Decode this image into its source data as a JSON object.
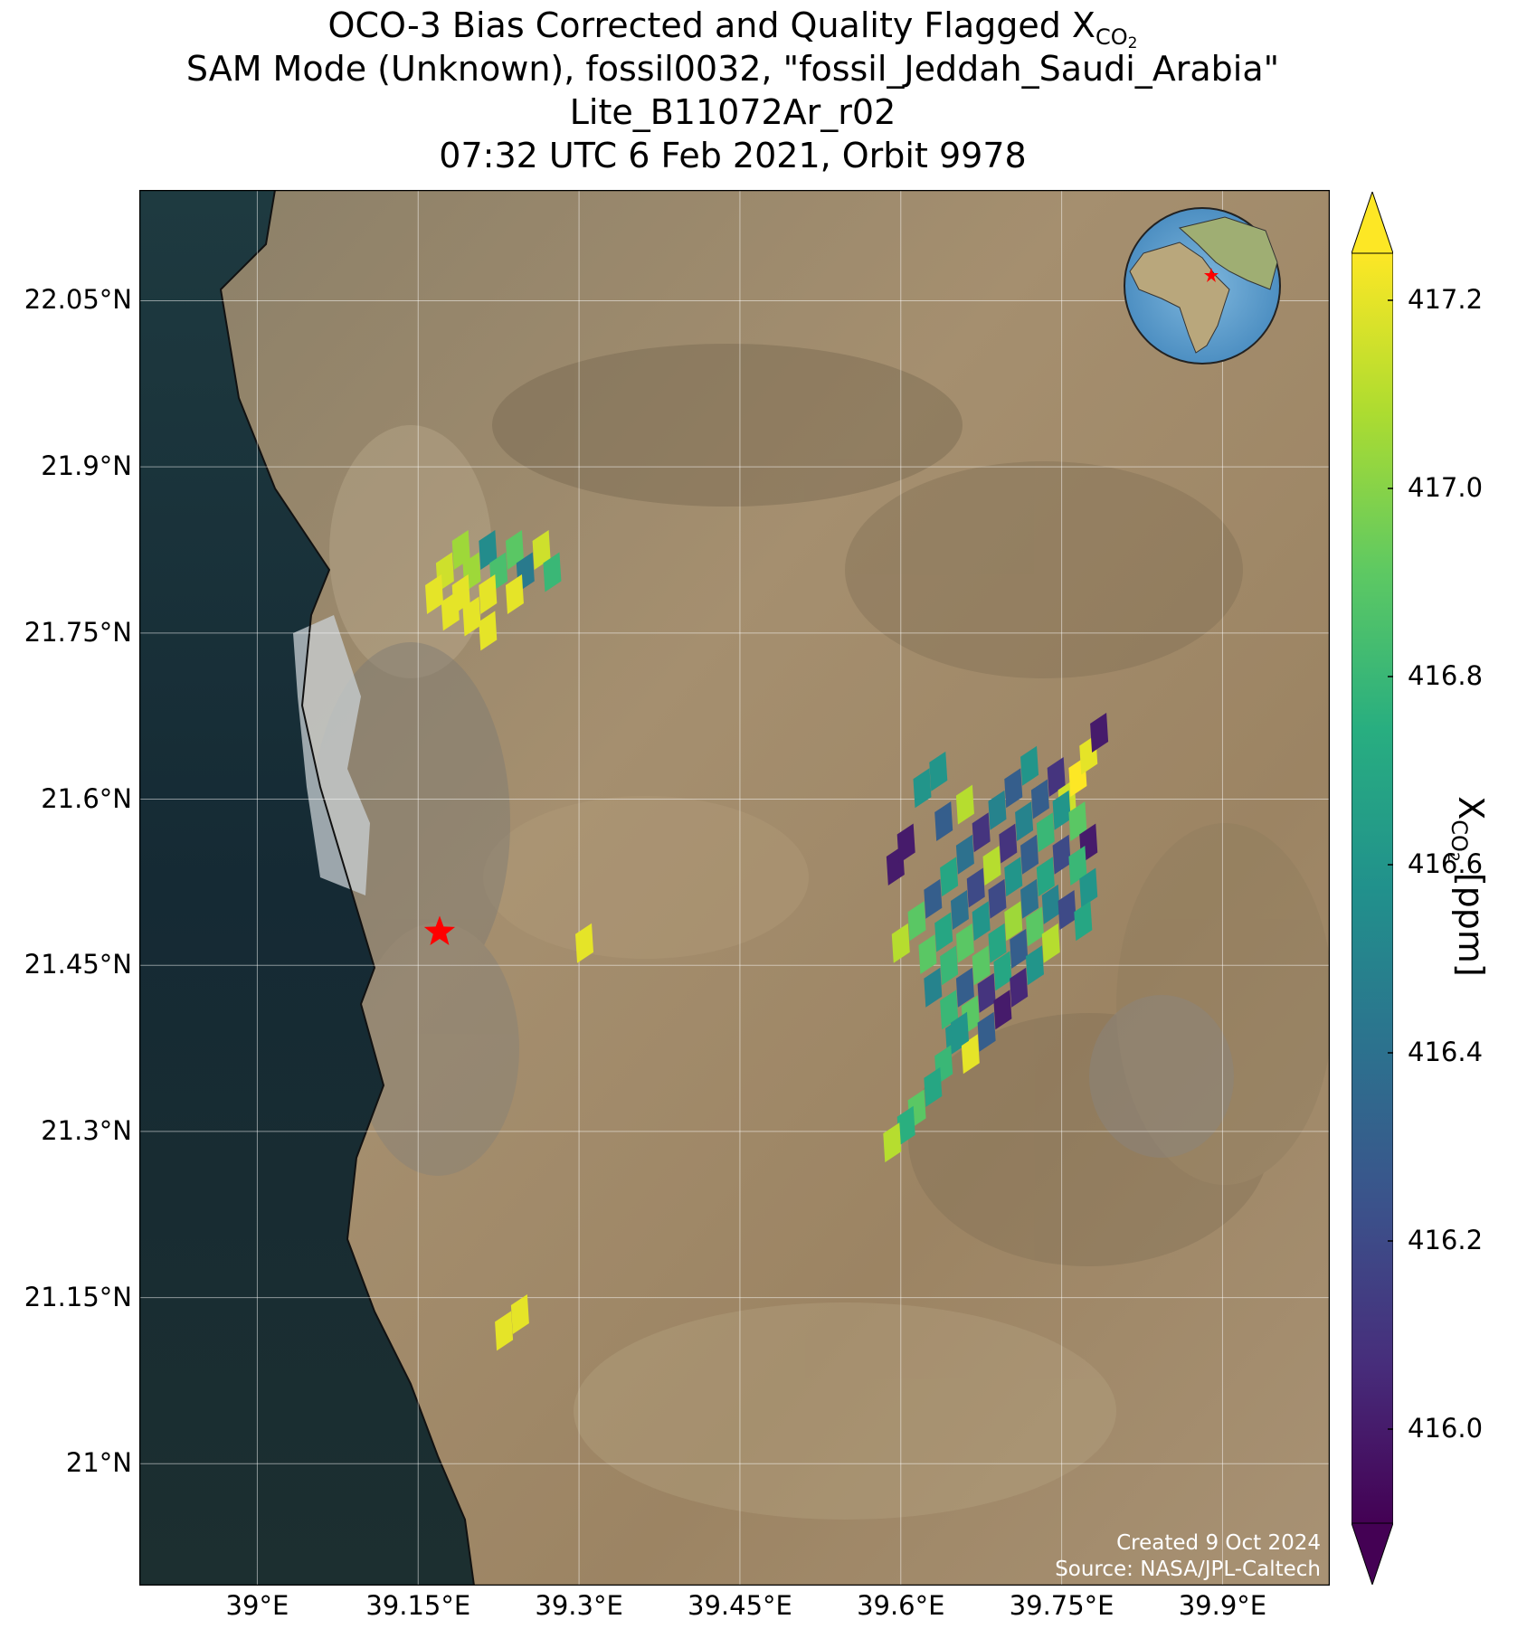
{
  "title": {
    "line1_prefix": "OCO-3 Bias Corrected and Quality Flagged X",
    "line1_sub": "CO",
    "line1_sub2": "2",
    "line2": "SAM Mode (Unknown), fossil0032, \"fossil_Jeddah_Saudi_Arabia\"",
    "line3": "Lite_B11072Ar_r02",
    "line4": "07:32 UTC 6 Feb 2021, Orbit 9978"
  },
  "map": {
    "lon_range": [
      38.89,
      40.0
    ],
    "lat_range": [
      20.89,
      22.15
    ],
    "lat_ticks": [
      {
        "value": 22.05,
        "label": "22.05°N"
      },
      {
        "value": 21.9,
        "label": "21.9°N"
      },
      {
        "value": 21.75,
        "label": "21.75°N"
      },
      {
        "value": 21.6,
        "label": "21.6°N"
      },
      {
        "value": 21.45,
        "label": "21.45°N"
      },
      {
        "value": 21.3,
        "label": "21.3°N"
      },
      {
        "value": 21.15,
        "label": "21.15°N"
      },
      {
        "value": 21.0,
        "label": "21°N"
      }
    ],
    "lon_ticks": [
      {
        "value": 39.0,
        "label": "39°E"
      },
      {
        "value": 39.15,
        "label": "39.15°E"
      },
      {
        "value": 39.3,
        "label": "39.3°E"
      },
      {
        "value": 39.45,
        "label": "39.45°E"
      },
      {
        "value": 39.6,
        "label": "39.6°E"
      },
      {
        "value": 39.75,
        "label": "39.75°E"
      },
      {
        "value": 39.9,
        "label": "39.9°E"
      }
    ],
    "grid": true,
    "basemap": "satellite imagery",
    "site_marker": {
      "name": "fossil_Jeddah_Saudi_Arabia",
      "lon": 39.17,
      "lat": 21.48,
      "color": "#ff0000",
      "shape": "star"
    },
    "inset": {
      "type": "globe",
      "marker_color": "#ff0000",
      "placement": "top-right"
    },
    "credit_line1": "Created 9 Oct 2024",
    "credit_line2": "Source: NASA/JPL-Caltech"
  },
  "colorbar": {
    "colormap": "viridis",
    "range": [
      415.9,
      417.25
    ],
    "ticks": [
      {
        "value": 417.2,
        "label": "417.2"
      },
      {
        "value": 417.0,
        "label": "417.0"
      },
      {
        "value": 416.8,
        "label": "416.8"
      },
      {
        "value": 416.6,
        "label": "416.6"
      },
      {
        "value": 416.4,
        "label": "416.4"
      },
      {
        "value": 416.2,
        "label": "416.2"
      },
      {
        "value": 416.0,
        "label": "416.0"
      }
    ],
    "label_prefix": "X",
    "label_sub": "CO",
    "label_sub2": "2",
    "label_suffix": " [ppm]",
    "extend": "both"
  },
  "chart_data": {
    "type": "scatter",
    "description_units": "lon (°E), lat (°N), XCO2 (ppm)",
    "points": [
      {
        "lon": 39.19,
        "lat": 21.825,
        "v": 417.05
      },
      {
        "lon": 39.215,
        "lat": 21.825,
        "v": 416.55
      },
      {
        "lon": 39.24,
        "lat": 21.825,
        "v": 416.9
      },
      {
        "lon": 39.265,
        "lat": 21.825,
        "v": 417.15
      },
      {
        "lon": 39.175,
        "lat": 21.805,
        "v": 417.15
      },
      {
        "lon": 39.2,
        "lat": 21.805,
        "v": 417.05
      },
      {
        "lon": 39.225,
        "lat": 21.805,
        "v": 416.85
      },
      {
        "lon": 39.25,
        "lat": 21.805,
        "v": 416.45
      },
      {
        "lon": 39.275,
        "lat": 21.805,
        "v": 416.8
      },
      {
        "lon": 39.165,
        "lat": 21.785,
        "v": 417.2
      },
      {
        "lon": 39.19,
        "lat": 21.785,
        "v": 417.2
      },
      {
        "lon": 39.215,
        "lat": 21.785,
        "v": 417.2
      },
      {
        "lon": 39.24,
        "lat": 21.785,
        "v": 417.2
      },
      {
        "lon": 39.18,
        "lat": 21.77,
        "v": 417.2
      },
      {
        "lon": 39.2,
        "lat": 21.765,
        "v": 417.2
      },
      {
        "lon": 39.215,
        "lat": 21.752,
        "v": 417.2
      },
      {
        "lon": 39.305,
        "lat": 21.47,
        "v": 417.2
      },
      {
        "lon": 39.23,
        "lat": 21.12,
        "v": 417.2
      },
      {
        "lon": 39.245,
        "lat": 21.135,
        "v": 417.2
      },
      {
        "lon": 39.62,
        "lat": 21.61,
        "v": 416.6
      },
      {
        "lon": 39.635,
        "lat": 21.625,
        "v": 416.6
      },
      {
        "lon": 39.66,
        "lat": 21.595,
        "v": 417.1
      },
      {
        "lon": 39.64,
        "lat": 21.58,
        "v": 416.3
      },
      {
        "lon": 39.595,
        "lat": 21.54,
        "v": 416.0
      },
      {
        "lon": 39.605,
        "lat": 21.56,
        "v": 416.0
      },
      {
        "lon": 39.6,
        "lat": 21.47,
        "v": 417.1
      },
      {
        "lon": 39.615,
        "lat": 21.49,
        "v": 416.9
      },
      {
        "lon": 39.63,
        "lat": 21.51,
        "v": 416.3
      },
      {
        "lon": 39.645,
        "lat": 21.53,
        "v": 416.7
      },
      {
        "lon": 39.66,
        "lat": 21.55,
        "v": 416.4
      },
      {
        "lon": 39.675,
        "lat": 21.57,
        "v": 416.1
      },
      {
        "lon": 39.69,
        "lat": 21.59,
        "v": 416.5
      },
      {
        "lon": 39.705,
        "lat": 21.61,
        "v": 416.3
      },
      {
        "lon": 39.72,
        "lat": 21.63,
        "v": 416.6
      },
      {
        "lon": 39.625,
        "lat": 21.46,
        "v": 416.9
      },
      {
        "lon": 39.64,
        "lat": 21.48,
        "v": 416.7
      },
      {
        "lon": 39.655,
        "lat": 21.5,
        "v": 416.4
      },
      {
        "lon": 39.67,
        "lat": 21.52,
        "v": 416.2
      },
      {
        "lon": 39.685,
        "lat": 21.54,
        "v": 417.1
      },
      {
        "lon": 39.7,
        "lat": 21.56,
        "v": 416.1
      },
      {
        "lon": 39.715,
        "lat": 21.58,
        "v": 416.5
      },
      {
        "lon": 39.73,
        "lat": 21.6,
        "v": 416.3
      },
      {
        "lon": 39.745,
        "lat": 21.62,
        "v": 416.1
      },
      {
        "lon": 39.755,
        "lat": 21.6,
        "v": 417.15
      },
      {
        "lon": 39.765,
        "lat": 21.62,
        "v": 417.25
      },
      {
        "lon": 39.775,
        "lat": 21.64,
        "v": 417.2
      },
      {
        "lon": 39.785,
        "lat": 21.66,
        "v": 416.0
      },
      {
        "lon": 39.63,
        "lat": 21.43,
        "v": 416.5
      },
      {
        "lon": 39.645,
        "lat": 21.45,
        "v": 416.8
      },
      {
        "lon": 39.66,
        "lat": 21.47,
        "v": 416.9
      },
      {
        "lon": 39.675,
        "lat": 21.49,
        "v": 416.6
      },
      {
        "lon": 39.69,
        "lat": 21.51,
        "v": 416.2
      },
      {
        "lon": 39.705,
        "lat": 21.53,
        "v": 416.6
      },
      {
        "lon": 39.72,
        "lat": 21.55,
        "v": 416.3
      },
      {
        "lon": 39.735,
        "lat": 21.57,
        "v": 416.8
      },
      {
        "lon": 39.75,
        "lat": 21.59,
        "v": 416.6
      },
      {
        "lon": 39.765,
        "lat": 21.58,
        "v": 416.9
      },
      {
        "lon": 39.775,
        "lat": 21.56,
        "v": 416.0
      },
      {
        "lon": 39.645,
        "lat": 21.41,
        "v": 416.8
      },
      {
        "lon": 39.66,
        "lat": 21.43,
        "v": 416.3
      },
      {
        "lon": 39.675,
        "lat": 21.45,
        "v": 416.9
      },
      {
        "lon": 39.69,
        "lat": 21.47,
        "v": 416.7
      },
      {
        "lon": 39.705,
        "lat": 21.49,
        "v": 417.05
      },
      {
        "lon": 39.72,
        "lat": 21.51,
        "v": 416.4
      },
      {
        "lon": 39.735,
        "lat": 21.53,
        "v": 416.7
      },
      {
        "lon": 39.75,
        "lat": 21.55,
        "v": 416.2
      },
      {
        "lon": 39.765,
        "lat": 21.54,
        "v": 416.8
      },
      {
        "lon": 39.775,
        "lat": 21.52,
        "v": 416.6
      },
      {
        "lon": 39.65,
        "lat": 21.385,
        "v": 416.6
      },
      {
        "lon": 39.665,
        "lat": 21.405,
        "v": 416.9
      },
      {
        "lon": 39.68,
        "lat": 21.425,
        "v": 416.1
      },
      {
        "lon": 39.695,
        "lat": 21.445,
        "v": 416.7
      },
      {
        "lon": 39.71,
        "lat": 21.465,
        "v": 416.3
      },
      {
        "lon": 39.725,
        "lat": 21.485,
        "v": 416.9
      },
      {
        "lon": 39.74,
        "lat": 21.505,
        "v": 416.5
      },
      {
        "lon": 39.755,
        "lat": 21.5,
        "v": 416.2
      },
      {
        "lon": 39.77,
        "lat": 21.49,
        "v": 416.7
      },
      {
        "lon": 39.665,
        "lat": 21.37,
        "v": 417.2
      },
      {
        "lon": 39.68,
        "lat": 21.39,
        "v": 416.3
      },
      {
        "lon": 39.695,
        "lat": 21.41,
        "v": 416.0
      },
      {
        "lon": 39.71,
        "lat": 21.43,
        "v": 416.05
      },
      {
        "lon": 39.725,
        "lat": 21.45,
        "v": 416.6
      },
      {
        "lon": 39.74,
        "lat": 21.47,
        "v": 417.1
      },
      {
        "lon": 39.64,
        "lat": 21.36,
        "v": 416.8
      },
      {
        "lon": 39.655,
        "lat": 21.39,
        "v": 416.6
      },
      {
        "lon": 39.63,
        "lat": 21.34,
        "v": 416.7
      },
      {
        "lon": 39.615,
        "lat": 21.32,
        "v": 416.9
      },
      {
        "lon": 39.605,
        "lat": 21.305,
        "v": 416.75
      },
      {
        "lon": 39.592,
        "lat": 21.29,
        "v": 417.1
      }
    ]
  }
}
